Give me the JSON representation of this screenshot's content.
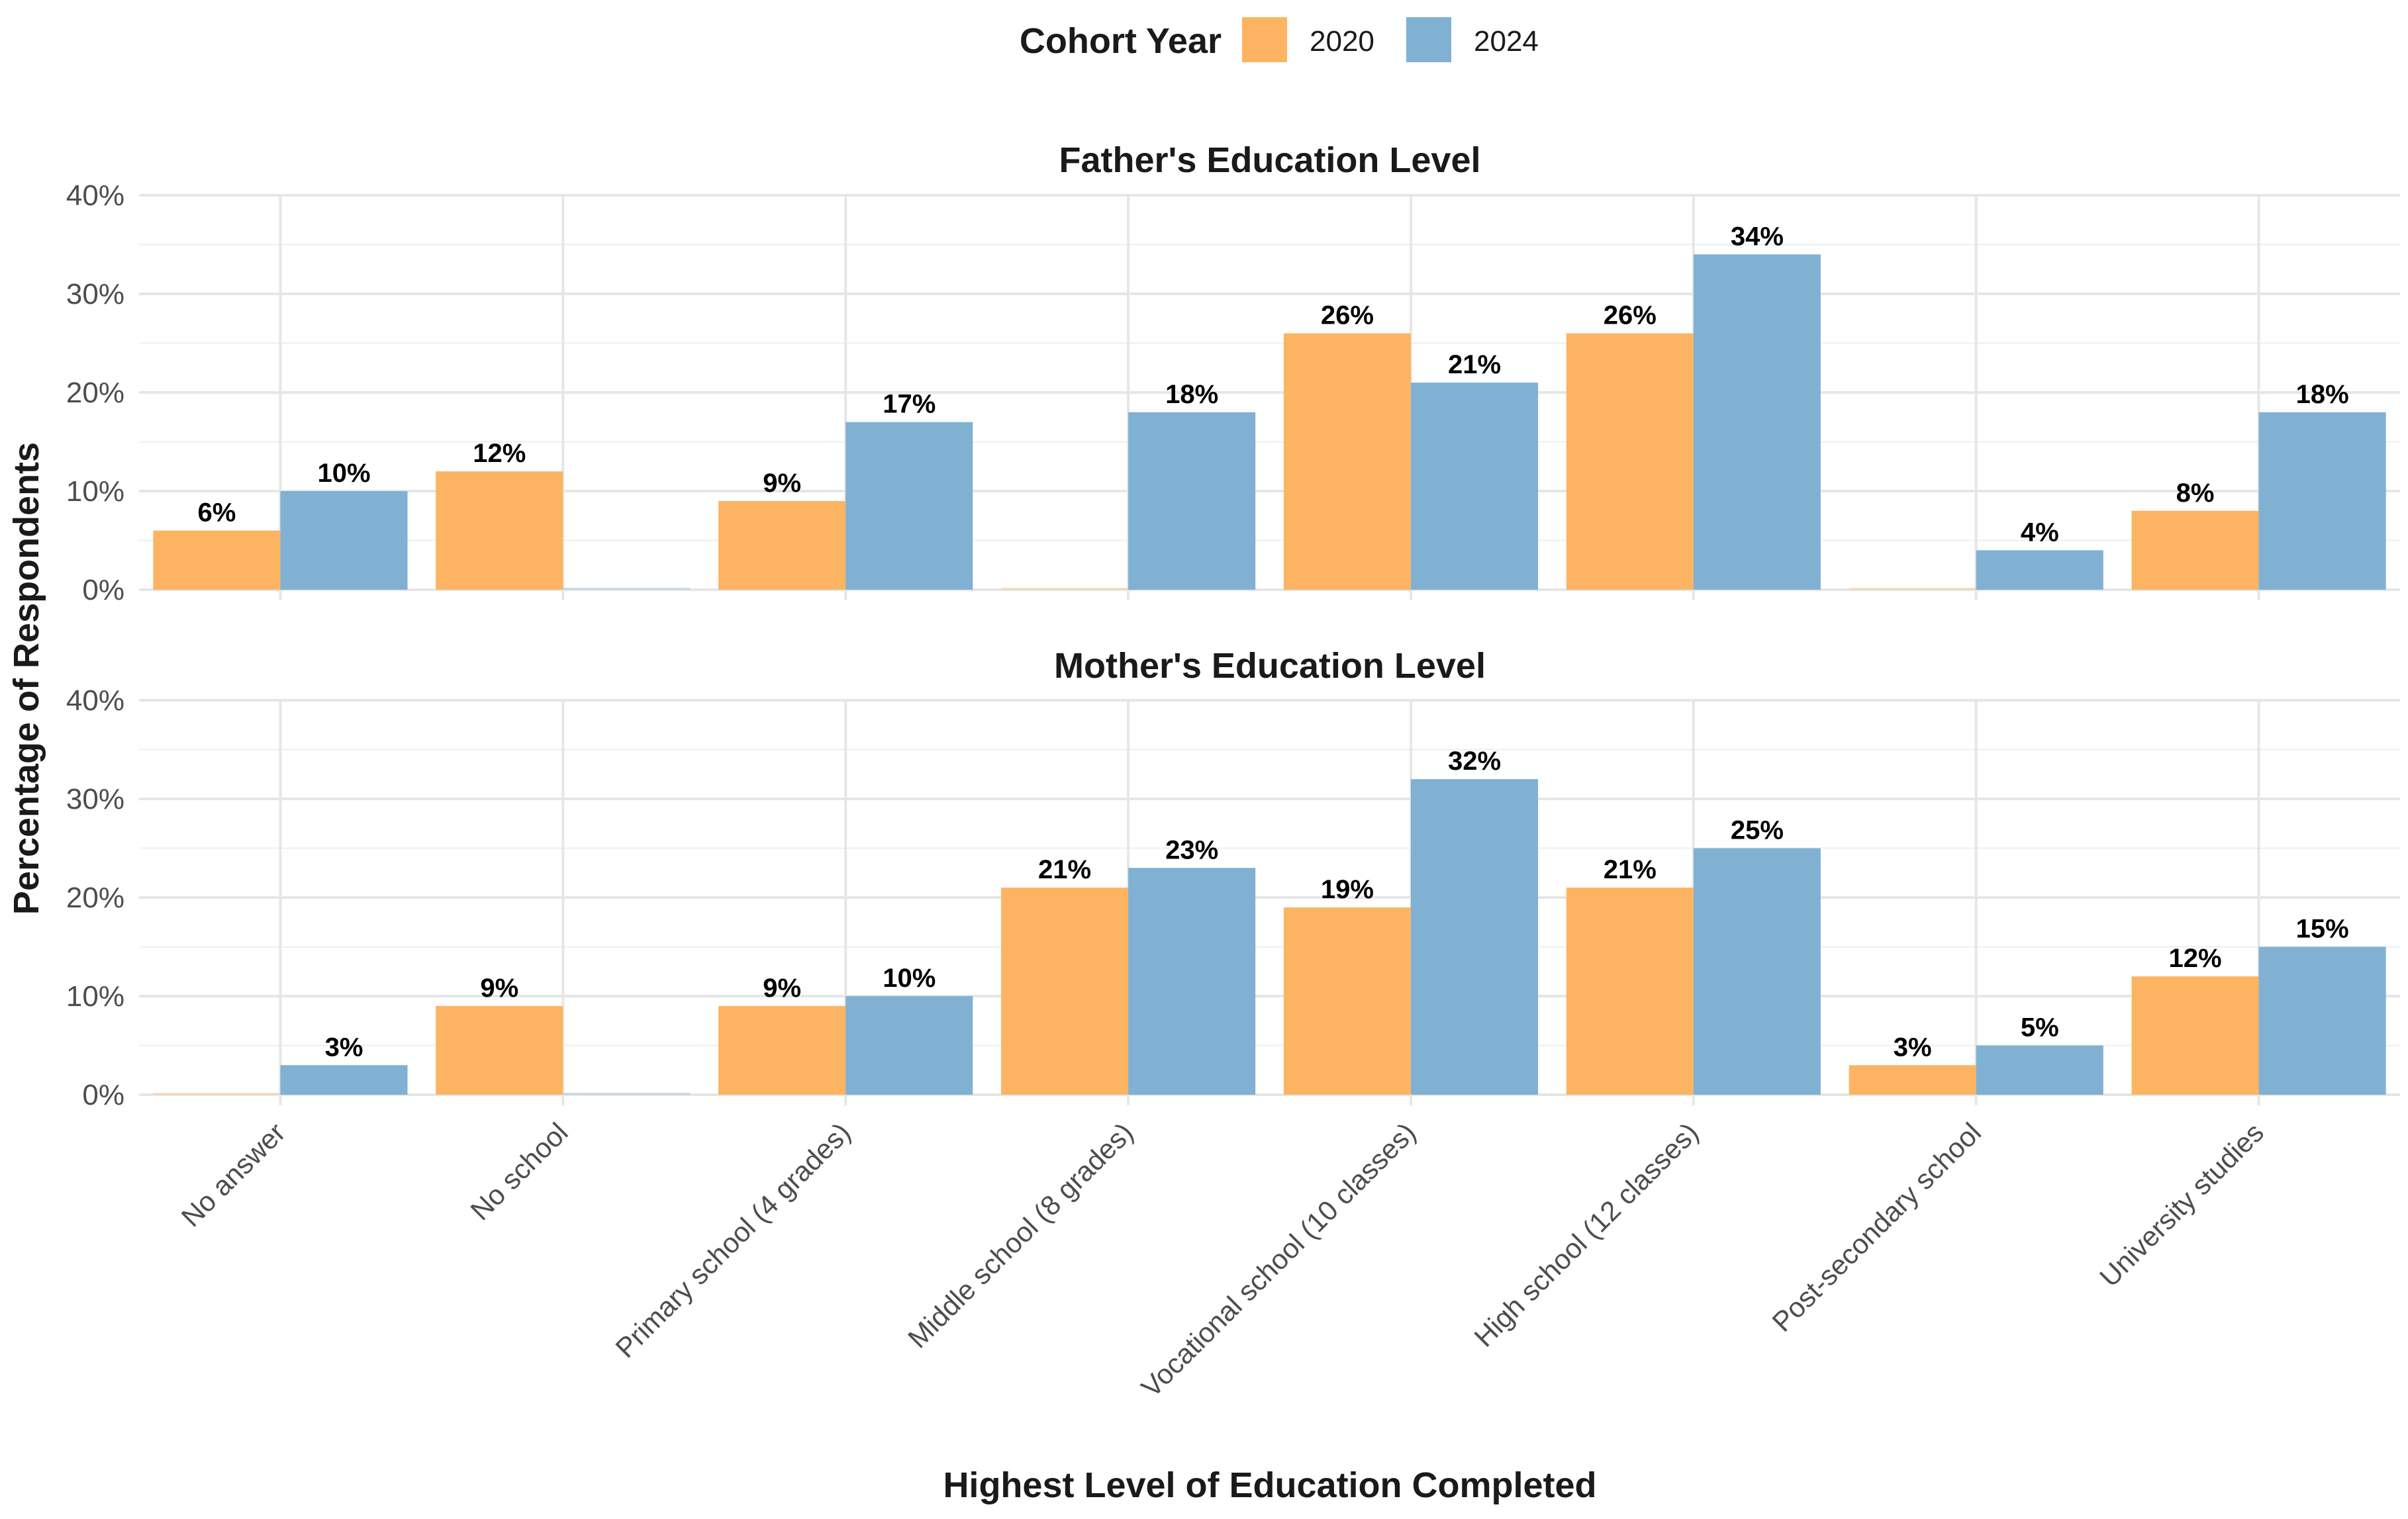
{
  "chart_data": {
    "type": "bar",
    "categories": [
      "No answer",
      "No school",
      "Primary school (4 grades)",
      "Middle school (8 grades)",
      "Vocational school (10 classes)",
      "High school (12 classes)",
      "Post-secondary school",
      "University studies"
    ],
    "xlabel": "Highest Level of Education Completed",
    "ylabel": "Percentage of Respondents",
    "ylim": [
      0,
      40
    ],
    "yticks": [
      0,
      10,
      20,
      30,
      40
    ],
    "ytick_labels": [
      "0%",
      "10%",
      "20%",
      "30%",
      "40%"
    ],
    "grid": true,
    "legend": {
      "title": "Cohort Year",
      "position": "top",
      "entries": [
        {
          "name": "2020",
          "color": "#FDB462"
        },
        {
          "name": "2024",
          "color": "#80B1D3"
        }
      ]
    },
    "panels": [
      {
        "title": "Father's Education Level",
        "series": [
          {
            "name": "2020",
            "values": [
              6,
              12,
              9,
              0,
              26,
              26,
              0,
              8
            ],
            "labels": [
              "6%",
              "12%",
              "9%",
              "",
              "26%",
              "26%",
              "",
              "8%"
            ]
          },
          {
            "name": "2024",
            "values": [
              10,
              0,
              17,
              18,
              21,
              34,
              4,
              18
            ],
            "labels": [
              "10%",
              "",
              "17%",
              "18%",
              "21%",
              "34%",
              "4%",
              "18%"
            ]
          }
        ]
      },
      {
        "title": "Mother's Education Level",
        "series": [
          {
            "name": "2020",
            "values": [
              0,
              9,
              9,
              21,
              19,
              21,
              3,
              12
            ],
            "labels": [
              "",
              "9%",
              "9%",
              "21%",
              "19%",
              "21%",
              "3%",
              "12%"
            ]
          },
          {
            "name": "2024",
            "values": [
              3,
              0,
              10,
              23,
              32,
              25,
              5,
              15
            ],
            "labels": [
              "3%",
              "",
              "10%",
              "23%",
              "32%",
              "25%",
              "5%",
              "15%"
            ]
          }
        ]
      }
    ]
  }
}
